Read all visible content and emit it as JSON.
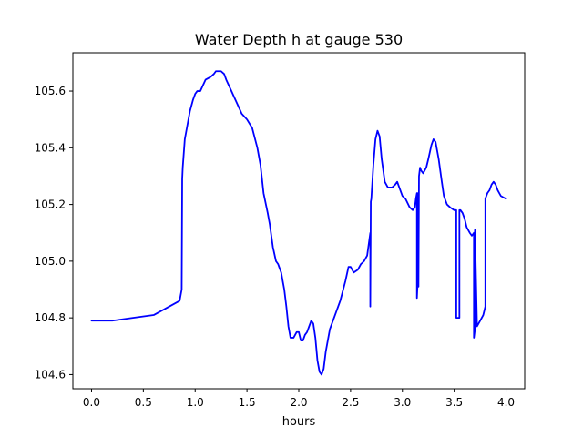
{
  "chart_data": {
    "type": "line",
    "title": "Water Depth h at gauge 530",
    "xlabel": "hours",
    "ylabel": "",
    "xlim": [
      -0.18,
      4.18
    ],
    "ylim": [
      104.55,
      105.735
    ],
    "x_ticks": [
      0.0,
      0.5,
      1.0,
      1.5,
      2.0,
      2.5,
      3.0,
      3.5,
      4.0
    ],
    "x_tick_labels": [
      "0.0",
      "0.5",
      "1.0",
      "1.5",
      "2.0",
      "2.5",
      "3.0",
      "3.5",
      "4.0"
    ],
    "y_ticks": [
      104.6,
      104.8,
      105.0,
      105.2,
      105.4,
      105.6
    ],
    "y_tick_labels": [
      "104.6",
      "104.8",
      "105.0",
      "105.2",
      "105.4",
      "105.6"
    ],
    "grid": false,
    "legend": "none",
    "series": [
      {
        "color": "#0000ff",
        "x": [
          0.0,
          0.2,
          0.4,
          0.6,
          0.65,
          0.7,
          0.75,
          0.8,
          0.85,
          0.87,
          0.875,
          0.88,
          0.9,
          0.92,
          0.95,
          0.98,
          1.0,
          1.02,
          1.05,
          1.1,
          1.15,
          1.18,
          1.2,
          1.22,
          1.25,
          1.28,
          1.3,
          1.35,
          1.4,
          1.45,
          1.5,
          1.55,
          1.6,
          1.63,
          1.66,
          1.7,
          1.72,
          1.75,
          1.78,
          1.8,
          1.83,
          1.86,
          1.88,
          1.9,
          1.92,
          1.95,
          1.98,
          2.0,
          2.02,
          2.04,
          2.06,
          2.08,
          2.1,
          2.12,
          2.14,
          2.16,
          2.18,
          2.2,
          2.22,
          2.24,
          2.26,
          2.28,
          2.3,
          2.33,
          2.36,
          2.4,
          2.45,
          2.48,
          2.5,
          2.53,
          2.57,
          2.6,
          2.63,
          2.66,
          2.69,
          2.69,
          2.695,
          2.7,
          2.72,
          2.74,
          2.76,
          2.77,
          2.78,
          2.8,
          2.83,
          2.86,
          2.9,
          2.93,
          2.95,
          2.97,
          3.0,
          3.03,
          3.07,
          3.1,
          3.12,
          3.13,
          3.14,
          3.14,
          3.145,
          3.15,
          3.155,
          3.16,
          3.17,
          3.18,
          3.2,
          3.23,
          3.25,
          3.28,
          3.3,
          3.32,
          3.35,
          3.38,
          3.4,
          3.43,
          3.46,
          3.5,
          3.52,
          3.52,
          3.55,
          3.55,
          3.56,
          3.58,
          3.6,
          3.62,
          3.65,
          3.67,
          3.69,
          3.69,
          3.7,
          3.7,
          3.72,
          3.75,
          3.78,
          3.8,
          3.8,
          3.82,
          3.84,
          3.86,
          3.88,
          3.9,
          3.92,
          3.95,
          4.0
        ],
        "y": [
          104.79,
          104.79,
          104.8,
          104.81,
          104.82,
          104.83,
          104.84,
          104.85,
          104.86,
          104.9,
          105.29,
          105.33,
          105.43,
          105.47,
          105.53,
          105.57,
          105.59,
          105.6,
          105.6,
          105.64,
          105.65,
          105.66,
          105.67,
          105.67,
          105.67,
          105.66,
          105.64,
          105.6,
          105.56,
          105.52,
          105.5,
          105.47,
          105.4,
          105.34,
          105.24,
          105.17,
          105.13,
          105.05,
          105.0,
          104.99,
          104.96,
          104.9,
          104.84,
          104.77,
          104.73,
          104.73,
          104.75,
          104.75,
          104.72,
          104.72,
          104.74,
          104.75,
          104.77,
          104.79,
          104.78,
          104.73,
          104.65,
          104.61,
          104.6,
          104.62,
          104.68,
          104.72,
          104.76,
          104.79,
          104.82,
          104.86,
          104.93,
          104.98,
          104.98,
          104.96,
          104.97,
          104.99,
          105.0,
          105.02,
          105.1,
          104.84,
          105.21,
          105.22,
          105.34,
          105.43,
          105.46,
          105.45,
          105.44,
          105.36,
          105.28,
          105.26,
          105.26,
          105.27,
          105.28,
          105.26,
          105.23,
          105.22,
          105.19,
          105.18,
          105.19,
          105.22,
          105.24,
          104.87,
          104.91,
          105.24,
          104.91,
          105.3,
          105.33,
          105.32,
          105.31,
          105.33,
          105.36,
          105.41,
          105.43,
          105.42,
          105.36,
          105.28,
          105.23,
          105.2,
          105.19,
          105.18,
          105.18,
          104.8,
          104.8,
          105.18,
          105.18,
          105.17,
          105.15,
          105.12,
          105.1,
          105.09,
          105.1,
          104.73,
          104.76,
          105.11,
          104.77,
          104.79,
          104.81,
          104.84,
          105.22,
          105.24,
          105.25,
          105.27,
          105.28,
          105.27,
          105.25,
          105.23,
          105.22
        ]
      }
    ]
  }
}
